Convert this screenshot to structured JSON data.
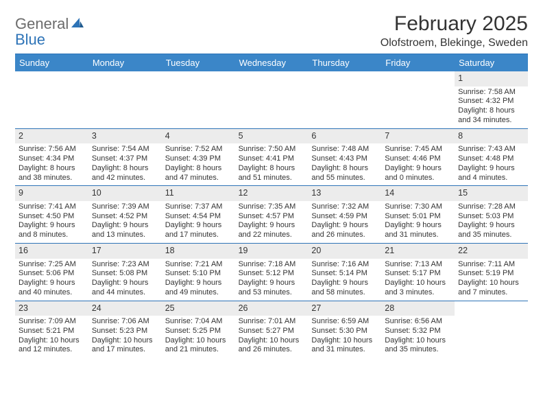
{
  "brand": {
    "part1": "General",
    "part2": "Blue"
  },
  "title": "February 2025",
  "location": "Olofstroem, Blekinge, Sweden",
  "colors": {
    "header_bg": "#3b86c8",
    "rule": "#2d73b7",
    "daynum_bg": "#ececec",
    "text": "#333333",
    "logo_gray": "#6b6b6b",
    "logo_blue": "#2d73b7",
    "background": "#ffffff"
  },
  "typography": {
    "title_fontsize": 30,
    "location_fontsize": 16,
    "dow_fontsize": 13,
    "daynum_fontsize": 12.5,
    "body_fontsize": 11,
    "logo_fontsize": 22
  },
  "days_of_week": [
    "Sunday",
    "Monday",
    "Tuesday",
    "Wednesday",
    "Thursday",
    "Friday",
    "Saturday"
  ],
  "weeks": [
    [
      null,
      null,
      null,
      null,
      null,
      null,
      {
        "n": "1",
        "sunrise": "Sunrise: 7:58 AM",
        "sunset": "Sunset: 4:32 PM",
        "daylight": "Daylight: 8 hours and 34 minutes."
      }
    ],
    [
      {
        "n": "2",
        "sunrise": "Sunrise: 7:56 AM",
        "sunset": "Sunset: 4:34 PM",
        "daylight": "Daylight: 8 hours and 38 minutes."
      },
      {
        "n": "3",
        "sunrise": "Sunrise: 7:54 AM",
        "sunset": "Sunset: 4:37 PM",
        "daylight": "Daylight: 8 hours and 42 minutes."
      },
      {
        "n": "4",
        "sunrise": "Sunrise: 7:52 AM",
        "sunset": "Sunset: 4:39 PM",
        "daylight": "Daylight: 8 hours and 47 minutes."
      },
      {
        "n": "5",
        "sunrise": "Sunrise: 7:50 AM",
        "sunset": "Sunset: 4:41 PM",
        "daylight": "Daylight: 8 hours and 51 minutes."
      },
      {
        "n": "6",
        "sunrise": "Sunrise: 7:48 AM",
        "sunset": "Sunset: 4:43 PM",
        "daylight": "Daylight: 8 hours and 55 minutes."
      },
      {
        "n": "7",
        "sunrise": "Sunrise: 7:45 AM",
        "sunset": "Sunset: 4:46 PM",
        "daylight": "Daylight: 9 hours and 0 minutes."
      },
      {
        "n": "8",
        "sunrise": "Sunrise: 7:43 AM",
        "sunset": "Sunset: 4:48 PM",
        "daylight": "Daylight: 9 hours and 4 minutes."
      }
    ],
    [
      {
        "n": "9",
        "sunrise": "Sunrise: 7:41 AM",
        "sunset": "Sunset: 4:50 PM",
        "daylight": "Daylight: 9 hours and 8 minutes."
      },
      {
        "n": "10",
        "sunrise": "Sunrise: 7:39 AM",
        "sunset": "Sunset: 4:52 PM",
        "daylight": "Daylight: 9 hours and 13 minutes."
      },
      {
        "n": "11",
        "sunrise": "Sunrise: 7:37 AM",
        "sunset": "Sunset: 4:54 PM",
        "daylight": "Daylight: 9 hours and 17 minutes."
      },
      {
        "n": "12",
        "sunrise": "Sunrise: 7:35 AM",
        "sunset": "Sunset: 4:57 PM",
        "daylight": "Daylight: 9 hours and 22 minutes."
      },
      {
        "n": "13",
        "sunrise": "Sunrise: 7:32 AM",
        "sunset": "Sunset: 4:59 PM",
        "daylight": "Daylight: 9 hours and 26 minutes."
      },
      {
        "n": "14",
        "sunrise": "Sunrise: 7:30 AM",
        "sunset": "Sunset: 5:01 PM",
        "daylight": "Daylight: 9 hours and 31 minutes."
      },
      {
        "n": "15",
        "sunrise": "Sunrise: 7:28 AM",
        "sunset": "Sunset: 5:03 PM",
        "daylight": "Daylight: 9 hours and 35 minutes."
      }
    ],
    [
      {
        "n": "16",
        "sunrise": "Sunrise: 7:25 AM",
        "sunset": "Sunset: 5:06 PM",
        "daylight": "Daylight: 9 hours and 40 minutes."
      },
      {
        "n": "17",
        "sunrise": "Sunrise: 7:23 AM",
        "sunset": "Sunset: 5:08 PM",
        "daylight": "Daylight: 9 hours and 44 minutes."
      },
      {
        "n": "18",
        "sunrise": "Sunrise: 7:21 AM",
        "sunset": "Sunset: 5:10 PM",
        "daylight": "Daylight: 9 hours and 49 minutes."
      },
      {
        "n": "19",
        "sunrise": "Sunrise: 7:18 AM",
        "sunset": "Sunset: 5:12 PM",
        "daylight": "Daylight: 9 hours and 53 minutes."
      },
      {
        "n": "20",
        "sunrise": "Sunrise: 7:16 AM",
        "sunset": "Sunset: 5:14 PM",
        "daylight": "Daylight: 9 hours and 58 minutes."
      },
      {
        "n": "21",
        "sunrise": "Sunrise: 7:13 AM",
        "sunset": "Sunset: 5:17 PM",
        "daylight": "Daylight: 10 hours and 3 minutes."
      },
      {
        "n": "22",
        "sunrise": "Sunrise: 7:11 AM",
        "sunset": "Sunset: 5:19 PM",
        "daylight": "Daylight: 10 hours and 7 minutes."
      }
    ],
    [
      {
        "n": "23",
        "sunrise": "Sunrise: 7:09 AM",
        "sunset": "Sunset: 5:21 PM",
        "daylight": "Daylight: 10 hours and 12 minutes."
      },
      {
        "n": "24",
        "sunrise": "Sunrise: 7:06 AM",
        "sunset": "Sunset: 5:23 PM",
        "daylight": "Daylight: 10 hours and 17 minutes."
      },
      {
        "n": "25",
        "sunrise": "Sunrise: 7:04 AM",
        "sunset": "Sunset: 5:25 PM",
        "daylight": "Daylight: 10 hours and 21 minutes."
      },
      {
        "n": "26",
        "sunrise": "Sunrise: 7:01 AM",
        "sunset": "Sunset: 5:27 PM",
        "daylight": "Daylight: 10 hours and 26 minutes."
      },
      {
        "n": "27",
        "sunrise": "Sunrise: 6:59 AM",
        "sunset": "Sunset: 5:30 PM",
        "daylight": "Daylight: 10 hours and 31 minutes."
      },
      {
        "n": "28",
        "sunrise": "Sunrise: 6:56 AM",
        "sunset": "Sunset: 5:32 PM",
        "daylight": "Daylight: 10 hours and 35 minutes."
      },
      null
    ]
  ]
}
